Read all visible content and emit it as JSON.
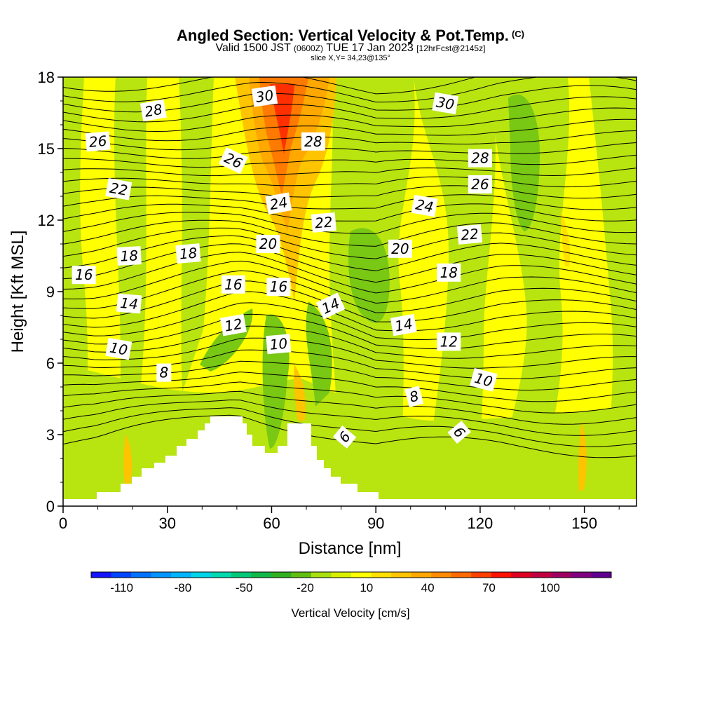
{
  "header": {
    "title": "Angled Section: Vertical Velocity & Pot.Temp.",
    "title_mark": "(C)",
    "subtitle_pre": "Valid 1500 JST",
    "subtitle_utc": "(0600Z)",
    "subtitle_date": "TUE 17 Jan 2023",
    "subtitle_run": "[12hrFcst@2145z]",
    "slice": "slice X,Y= 34,23@135°"
  },
  "chart_data": {
    "type": "heatmap",
    "xlabel": "Distance [nm]",
    "ylabel": "Height [Kft MSL]",
    "xlim": [
      0,
      165
    ],
    "ylim": [
      0,
      18
    ],
    "x_ticks": [
      "0",
      "30",
      "60",
      "90",
      "120",
      "150"
    ],
    "y_ticks": [
      "0",
      "3",
      "6",
      "9",
      "12",
      "15",
      "18"
    ],
    "colorbar": {
      "title": "Vertical Velocity [cm/s]",
      "labels": [
        "-110",
        "-80",
        "-50",
        "-20",
        "10",
        "40",
        "70",
        "100"
      ],
      "colors": [
        "#1414ff",
        "#0044ff",
        "#0070ff",
        "#0094ff",
        "#00b4ff",
        "#00d4e8",
        "#00d8b0",
        "#00c878",
        "#10b848",
        "#30b020",
        "#60c010",
        "#a8e010",
        "#d8f000",
        "#ffff00",
        "#ffe000",
        "#ffc400",
        "#ffa800",
        "#ff8a00",
        "#ff6a00",
        "#ff4000",
        "#ff1000",
        "#e00020",
        "#c00040",
        "#a00060",
        "#800080",
        "#600090"
      ]
    },
    "potential_temperature_contour_labels": [
      {
        "text": "30",
        "x": 58,
        "y": 17.2,
        "rot": -8
      },
      {
        "text": "30",
        "x": 110,
        "y": 16.9,
        "rot": 10
      },
      {
        "text": "28",
        "x": 26,
        "y": 16.6,
        "rot": -10
      },
      {
        "text": "28",
        "x": 72,
        "y": 15.3,
        "rot": 0
      },
      {
        "text": "28",
        "x": 120,
        "y": 14.6,
        "rot": 0
      },
      {
        "text": "26",
        "x": 10,
        "y": 15.3,
        "rot": -5
      },
      {
        "text": "26",
        "x": 49,
        "y": 14.5,
        "rot": 25
      },
      {
        "text": "26",
        "x": 120,
        "y": 13.5,
        "rot": 0
      },
      {
        "text": "24",
        "x": 62,
        "y": 12.7,
        "rot": -10
      },
      {
        "text": "24",
        "x": 104,
        "y": 12.6,
        "rot": 10
      },
      {
        "text": "22",
        "x": 16,
        "y": 13.3,
        "rot": 10
      },
      {
        "text": "22",
        "x": 75,
        "y": 11.9,
        "rot": -5
      },
      {
        "text": "22",
        "x": 117,
        "y": 11.4,
        "rot": -5
      },
      {
        "text": "20",
        "x": 59,
        "y": 11.0,
        "rot": 0
      },
      {
        "text": "20",
        "x": 97,
        "y": 10.8,
        "rot": 0
      },
      {
        "text": "18",
        "x": 19,
        "y": 10.5,
        "rot": -3
      },
      {
        "text": "18",
        "x": 36,
        "y": 10.6,
        "rot": -5
      },
      {
        "text": "18",
        "x": 111,
        "y": 9.8,
        "rot": 0
      },
      {
        "text": "16",
        "x": 6,
        "y": 9.7,
        "rot": 0
      },
      {
        "text": "16",
        "x": 49,
        "y": 9.3,
        "rot": 0
      },
      {
        "text": "16",
        "x": 62,
        "y": 9.2,
        "rot": 0
      },
      {
        "text": "14",
        "x": 19,
        "y": 8.5,
        "rot": 5
      },
      {
        "text": "14",
        "x": 77,
        "y": 8.4,
        "rot": -25
      },
      {
        "text": "14",
        "x": 98,
        "y": 7.6,
        "rot": -10
      },
      {
        "text": "12",
        "x": 49,
        "y": 7.6,
        "rot": -10
      },
      {
        "text": "12",
        "x": 111,
        "y": 6.9,
        "rot": 0
      },
      {
        "text": "10",
        "x": 16,
        "y": 6.6,
        "rot": 10
      },
      {
        "text": "10",
        "x": 62,
        "y": 6.8,
        "rot": -5
      },
      {
        "text": "10",
        "x": 121,
        "y": 5.3,
        "rot": 15
      },
      {
        "text": "8",
        "x": 29,
        "y": 5.6,
        "rot": 0
      },
      {
        "text": "8",
        "x": 101,
        "y": 4.6,
        "rot": -15
      },
      {
        "text": "6",
        "x": 81,
        "y": 2.9,
        "rot": -50
      },
      {
        "text": "6",
        "x": 114,
        "y": 3.1,
        "rot": 50
      }
    ]
  }
}
